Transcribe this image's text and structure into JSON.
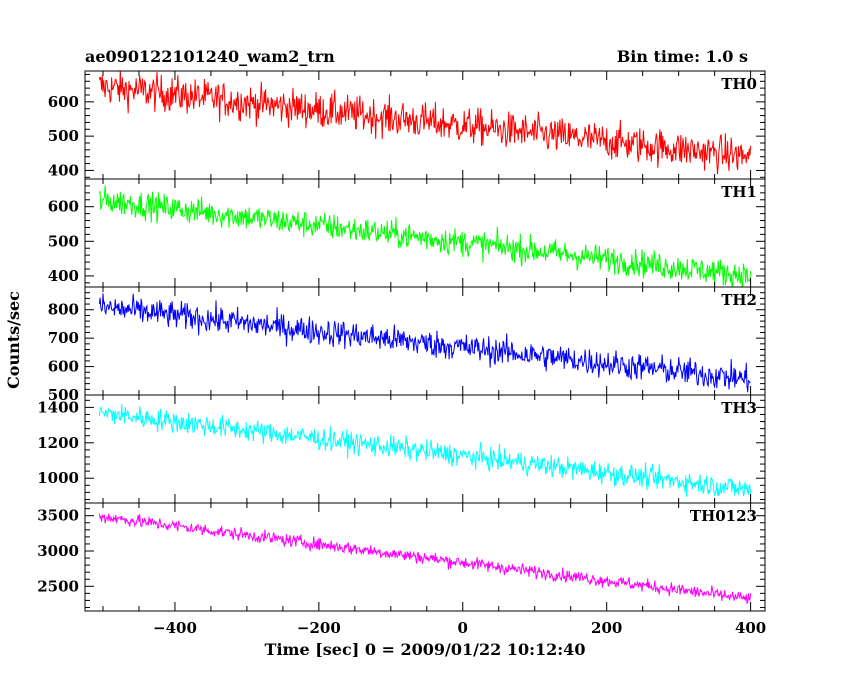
{
  "header": {
    "title": "ae090122101240_wam2_trn",
    "bin_time": "Bin time: 1.0 s"
  },
  "chart_data": {
    "type": "line",
    "x_axis": {
      "label": "Time [sec] 0 = 2009/01/22 10:12:40",
      "range": [
        -525,
        420
      ],
      "ticks": [
        -400,
        -200,
        0,
        200,
        400
      ],
      "tick_labels": [
        "−400",
        "−200",
        "0",
        "200",
        "400"
      ]
    },
    "y_axis_label": "Counts/sec",
    "time_span": [
      -505,
      400
    ],
    "panels": [
      {
        "name": "TH0",
        "color": "#ff0000",
        "ylim": [
          375,
          690
        ],
        "yticks": [
          400,
          500,
          600
        ],
        "start_level": 645,
        "end_level": 440,
        "noise": 38
      },
      {
        "name": "TH1",
        "color": "#00ff00",
        "ylim": [
          368,
          680
        ],
        "yticks": [
          400,
          500,
          600
        ],
        "start_level": 620,
        "end_level": 400,
        "noise": 28
      },
      {
        "name": "TH2",
        "color": "#0000ff",
        "ylim": [
          500,
          880
        ],
        "yticks": [
          500,
          600,
          700,
          800
        ],
        "start_level": 810,
        "end_level": 555,
        "noise": 35
      },
      {
        "name": "TH3",
        "color": "#00ffff",
        "ylim": [
          860,
          1470
        ],
        "yticks": [
          1000,
          1200,
          1400
        ],
        "start_level": 1370,
        "end_level": 935,
        "noise": 45
      },
      {
        "name": "TH0123",
        "color": "#ff00ff",
        "ylim": [
          2150,
          3680
        ],
        "yticks": [
          2500,
          3000,
          3500
        ],
        "start_level": 3490,
        "end_level": 2320,
        "noise": 65
      }
    ]
  }
}
